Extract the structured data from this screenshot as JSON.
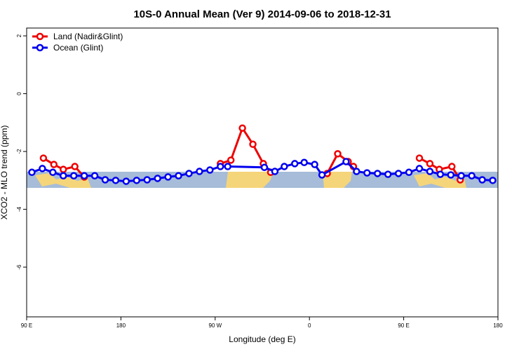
{
  "chart_data": {
    "type": "line",
    "title": "10S-0 Annual Mean (Ver 9)   2014-09-06 to 2018-12-31",
    "x_label": "Longitude (deg E)",
    "y_label": "XCO2 - MLO trend (ppm)",
    "xlim": [
      90,
      540
    ],
    "ylim": [
      -7.72,
      2.27
    ],
    "xticks": [
      {
        "value": 90,
        "label": "90 E"
      },
      180,
      {
        "value": 270,
        "label": "90 W"
      },
      {
        "value": 360,
        "label": "0"
      },
      {
        "value": 450,
        "label": "90 E"
      },
      {
        "value": 540,
        "label": "180"
      }
    ],
    "yticks": [
      2,
      0,
      -2,
      -4,
      -6
    ],
    "legend": "top-left",
    "series": [
      {
        "name": "Land (Nadir&Glint)",
        "color": "#ee0000",
        "x": [
          106,
          116,
          125,
          136,
          145,
          null,
          275,
          285,
          296,
          306,
          316,
          323,
          null,
          377,
          387,
          397,
          402,
          null,
          465,
          475,
          484,
          496,
          504
        ],
        "values": [
          -2.23,
          -2.45,
          -2.62,
          -2.52,
          -2.88,
          null,
          -2.42,
          -2.3,
          -1.19,
          -1.75,
          -2.42,
          -2.72,
          null,
          -2.76,
          -2.08,
          -2.35,
          -2.52,
          null,
          -2.23,
          -2.42,
          -2.62,
          -2.52,
          -2.98
        ]
      },
      {
        "name": "Ocean (Glint)",
        "color": "#0000ee",
        "x": [
          95,
          105,
          115,
          125,
          135,
          145,
          155,
          165,
          175,
          185,
          195,
          205,
          215,
          225,
          235,
          245,
          255,
          265,
          275,
          282,
          317,
          327,
          336,
          346,
          355,
          365,
          372,
          395,
          405,
          415,
          425,
          435,
          445,
          455,
          465,
          475,
          485,
          495,
          505,
          515,
          525,
          535
        ],
        "values": [
          -2.72,
          -2.59,
          -2.72,
          -2.84,
          -2.84,
          -2.84,
          -2.84,
          -2.98,
          -3.0,
          -3.03,
          -3.0,
          -2.98,
          -2.93,
          -2.88,
          -2.84,
          -2.76,
          -2.69,
          -2.64,
          -2.52,
          -2.52,
          -2.55,
          -2.69,
          -2.52,
          -2.42,
          -2.38,
          -2.45,
          -2.81,
          -2.35,
          -2.69,
          -2.74,
          -2.76,
          -2.79,
          -2.76,
          -2.72,
          -2.59,
          -2.69,
          -2.79,
          -2.81,
          -2.84,
          -2.84,
          -2.98,
          -3.0
        ]
      }
    ]
  }
}
